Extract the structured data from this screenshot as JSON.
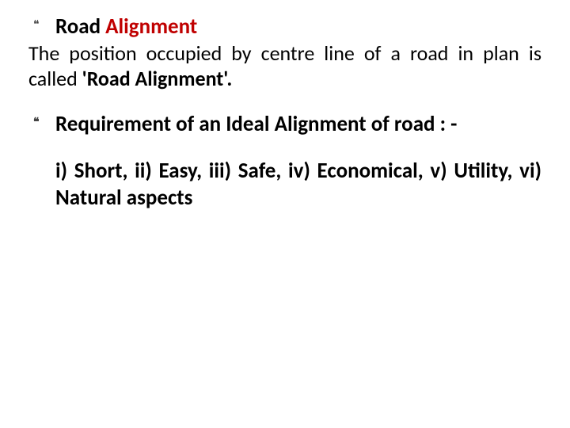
{
  "colors": {
    "text_black": "#000000",
    "text_red": "#c00000",
    "bullet_grey": "#444444",
    "wedge_dark": "#0d0d0d",
    "wedge_grey": "#cfcfcf",
    "background": "#ffffff"
  },
  "typography": {
    "title_fontsize_pt": 20,
    "body_fontsize_pt": 19,
    "font_family": "Calibri",
    "title_weight": "bold",
    "body_weight": "normal"
  },
  "bullet_glyph": "\u0016",
  "block1": {
    "title_black": "Road ",
    "title_red": "Alignment",
    "body_pre": "The position occupied by centre line of a road in plan is called ",
    "body_bold": "'Road Alignment'."
  },
  "block2": {
    "text": "Requirement of an Ideal Alignment of road : -"
  },
  "block3": {
    "text": "i) Short, ii) Easy, iii) Safe, iv) Economical, v) Utility, vi) Natural aspects"
  }
}
